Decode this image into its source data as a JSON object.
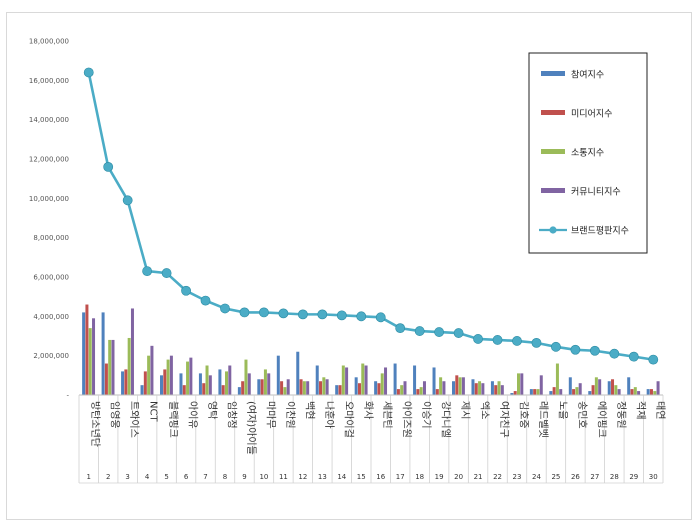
{
  "chart_data": {
    "type": "bar",
    "title": "",
    "xlabel": "",
    "ylabel": "",
    "ylim": [
      0,
      18000000
    ],
    "yticks": [
      "-",
      "2,000,000",
      "4,000,000",
      "6,000,000",
      "8,000,000",
      "10,000,000",
      "12,000,000",
      "14,000,000",
      "16,000,000",
      "18,000,000"
    ],
    "grid": false,
    "legend_position": "right",
    "ranks": [
      "1",
      "2",
      "3",
      "4",
      "5",
      "6",
      "7",
      "8",
      "9",
      "10",
      "11",
      "12",
      "13",
      "14",
      "15",
      "16",
      "17",
      "18",
      "19",
      "20",
      "21",
      "22",
      "23",
      "24",
      "25",
      "26",
      "27",
      "28",
      "29",
      "30"
    ],
    "categories": [
      "방탄소년단",
      "임영웅",
      "트와이스",
      "NCT",
      "블랙핑크",
      "아이유",
      "영탁",
      "임창정",
      "(여자)아이들",
      "마마무",
      "이찬원",
      "백현",
      "나훈아",
      "오마이걸",
      "화사",
      "세븐틴",
      "아이즈원",
      "이승기",
      "강다니엘",
      "제시",
      "엑소",
      "여자친구",
      "김호중",
      "레드벨벳",
      "노을",
      "송민호",
      "에이핑크",
      "정동원",
      "적재",
      "태연"
    ],
    "series": [
      {
        "name": "참여지수",
        "color": "#4f81bd",
        "values": [
          4200000,
          4200000,
          1200000,
          500000,
          1000000,
          1100000,
          1100000,
          1300000,
          400000,
          800000,
          2000000,
          2200000,
          1500000,
          500000,
          900000,
          700000,
          1600000,
          1500000,
          1400000,
          700000,
          800000,
          700000,
          100000,
          300000,
          200000,
          900000,
          200000,
          700000,
          900000,
          300000
        ]
      },
      {
        "name": "미디어지수",
        "color": "#c0504d",
        "values": [
          4600000,
          1600000,
          1300000,
          1200000,
          1300000,
          500000,
          600000,
          500000,
          700000,
          800000,
          700000,
          800000,
          700000,
          500000,
          600000,
          600000,
          300000,
          300000,
          300000,
          1000000,
          600000,
          500000,
          200000,
          300000,
          400000,
          300000,
          500000,
          800000,
          300000,
          300000
        ]
      },
      {
        "name": "소통지수",
        "color": "#9bbb59",
        "values": [
          3400000,
          2800000,
          2900000,
          2000000,
          1800000,
          1700000,
          1500000,
          1200000,
          1800000,
          1300000,
          400000,
          700000,
          900000,
          1500000,
          1600000,
          1100000,
          500000,
          400000,
          900000,
          900000,
          700000,
          700000,
          1100000,
          300000,
          1600000,
          400000,
          900000,
          500000,
          400000,
          200000
        ]
      },
      {
        "name": "커뮤니티지수",
        "color": "#8064a2",
        "values": [
          3900000,
          2800000,
          4400000,
          2500000,
          2000000,
          1900000,
          1000000,
          1500000,
          1100000,
          1100000,
          800000,
          700000,
          800000,
          1400000,
          1500000,
          1400000,
          700000,
          700000,
          700000,
          900000,
          600000,
          500000,
          1100000,
          1000000,
          300000,
          600000,
          800000,
          300000,
          200000,
          700000
        ]
      },
      {
        "name": "브랜드평판지수",
        "color": "#4bacc6",
        "kind": "line",
        "values": [
          16400000,
          11600000,
          9900000,
          6300000,
          6200000,
          5300000,
          4800000,
          4400000,
          4200000,
          4200000,
          4150000,
          4100000,
          4100000,
          4050000,
          4000000,
          3950000,
          3400000,
          3250000,
          3200000,
          3150000,
          2850000,
          2800000,
          2750000,
          2650000,
          2450000,
          2300000,
          2250000,
          2100000,
          1950000,
          1800000
        ]
      }
    ]
  }
}
